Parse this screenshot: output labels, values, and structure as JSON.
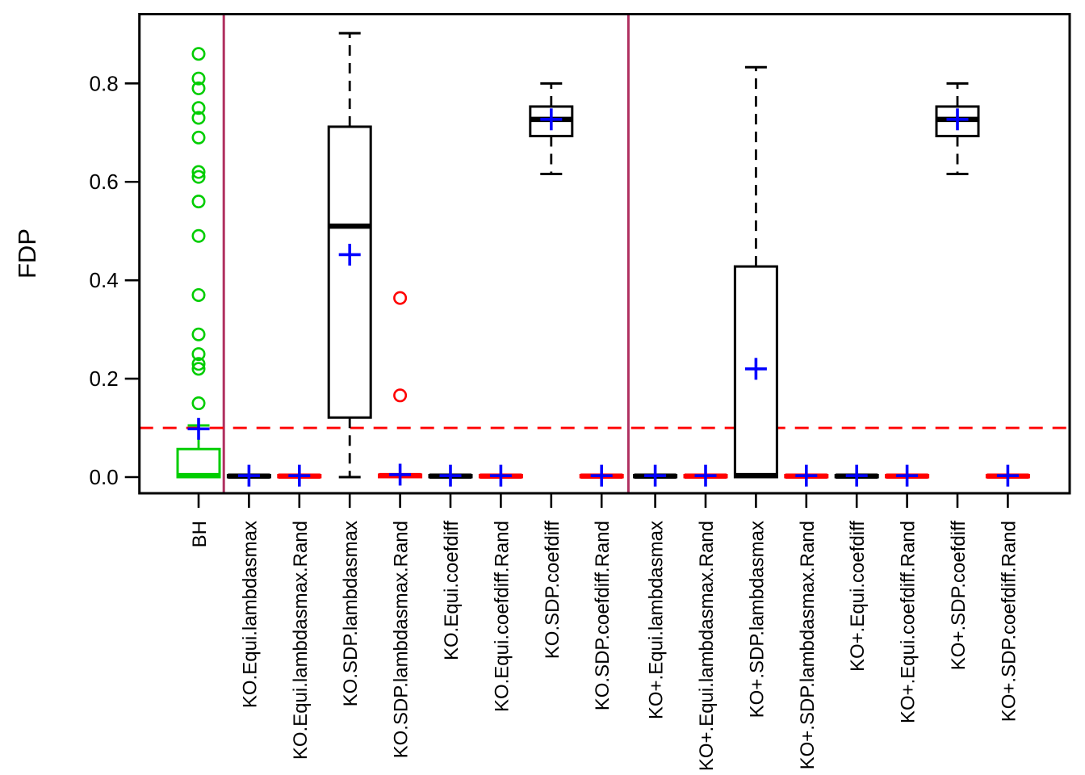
{
  "figure": {
    "ylabel": "FDP"
  },
  "chart_data": {
    "type": "boxplot",
    "title": "",
    "xlabel": "",
    "ylabel": "FDP",
    "ylim": [
      -0.033,
      0.941
    ],
    "grid": false,
    "yticks": [
      {
        "value": 0.0,
        "label": "0.0"
      },
      {
        "value": 0.2,
        "label": "0.2"
      },
      {
        "value": 0.4,
        "label": "0.4"
      },
      {
        "value": 0.6,
        "label": "0.6"
      },
      {
        "value": 0.8,
        "label": "0.8"
      }
    ],
    "categories": [
      "BH",
      "KO.Equi.lambdasmax",
      "KO.Equi.lambdasmax.Rand",
      "KO.SDP.lambdasmax",
      "KO.SDP.lambdasmax.Rand",
      "KO.Equi.coefdiff",
      "KO.Equi.coefdiff.Rand",
      "KO.SDP.coefdiff",
      "KO.SDP.coefdiff.Rand",
      "KO+.Equi.lambdasmax",
      "KO+.Equi.lambdasmax.Rand",
      "KO+.SDP.lambdasmax",
      "KO+.SDP.lambdasmax.Rand",
      "KO+.Equi.coefdiff",
      "KO+.Equi.coefdiff.Rand",
      "KO+.SDP.coefdiff",
      "KO+.SDP.coefdiff.Rand"
    ],
    "threshold_line": {
      "value": 0.1,
      "color": "#FF0000",
      "style": "dashed"
    },
    "separators": {
      "between_indices": [
        [
          0,
          1
        ],
        [
          8,
          9
        ]
      ],
      "color": "#B03060"
    },
    "mean_marker": {
      "symbol": "plus",
      "color": "#0000FF"
    },
    "boxes": [
      {
        "label": "BH",
        "color": "#00CD00",
        "whisker_low": 0.0,
        "q1": 0.0,
        "median": 0.003,
        "q3": 0.057,
        "whisker_high": 0.105,
        "mean": 0.098,
        "outliers": [
          0.86,
          0.81,
          0.79,
          0.75,
          0.73,
          0.69,
          0.62,
          0.61,
          0.56,
          0.49,
          0.37,
          0.29,
          0.25,
          0.23,
          0.22,
          0.15
        ]
      },
      {
        "label": "KO.Equi.lambdasmax",
        "color": "#000000",
        "whisker_low": 0.0,
        "q1": 0.0,
        "median": 0.002,
        "q3": 0.004,
        "whisker_high": 0.004,
        "mean": 0.003,
        "outliers": []
      },
      {
        "label": "KO.Equi.lambdasmax.Rand",
        "color": "#FF0000",
        "whisker_low": 0.0,
        "q1": 0.0,
        "median": 0.002,
        "q3": 0.004,
        "whisker_high": 0.004,
        "mean": 0.003,
        "outliers": []
      },
      {
        "label": "KO.SDP.lambdasmax",
        "color": "#000000",
        "whisker_low": 0.0,
        "q1": 0.121,
        "median": 0.51,
        "q3": 0.712,
        "whisker_high": 0.902,
        "mean": 0.452,
        "outliers": []
      },
      {
        "label": "KO.SDP.lambdasmax.Rand",
        "color": "#FF0000",
        "whisker_low": 0.0,
        "q1": 0.0,
        "median": 0.003,
        "q3": 0.005,
        "whisker_high": 0.005,
        "mean": 0.005,
        "outliers": [
          0.364,
          0.166
        ]
      },
      {
        "label": "KO.Equi.coefdiff",
        "color": "#000000",
        "whisker_low": 0.0,
        "q1": 0.0,
        "median": 0.002,
        "q3": 0.004,
        "whisker_high": 0.004,
        "mean": 0.003,
        "outliers": []
      },
      {
        "label": "KO.Equi.coefdiff.Rand",
        "color": "#FF0000",
        "whisker_low": 0.0,
        "q1": 0.0,
        "median": 0.002,
        "q3": 0.004,
        "whisker_high": 0.004,
        "mean": 0.003,
        "outliers": []
      },
      {
        "label": "KO.SDP.coefdiff",
        "color": "#000000",
        "whisker_low": 0.616,
        "q1": 0.693,
        "median": 0.727,
        "q3": 0.753,
        "whisker_high": 0.8,
        "mean": 0.727,
        "outliers": []
      },
      {
        "label": "KO.SDP.coefdiff.Rand",
        "color": "#FF0000",
        "whisker_low": 0.0,
        "q1": 0.0,
        "median": 0.002,
        "q3": 0.004,
        "whisker_high": 0.004,
        "mean": 0.003,
        "outliers": []
      },
      {
        "label": "KO+.Equi.lambdasmax",
        "color": "#000000",
        "whisker_low": 0.0,
        "q1": 0.0,
        "median": 0.002,
        "q3": 0.004,
        "whisker_high": 0.004,
        "mean": 0.003,
        "outliers": []
      },
      {
        "label": "KO+.Equi.lambdasmax.Rand",
        "color": "#FF0000",
        "whisker_low": 0.0,
        "q1": 0.0,
        "median": 0.002,
        "q3": 0.004,
        "whisker_high": 0.004,
        "mean": 0.003,
        "outliers": []
      },
      {
        "label": "KO+.SDP.lambdasmax",
        "color": "#000000",
        "whisker_low": 0.0,
        "q1": 0.0,
        "median": 0.003,
        "q3": 0.428,
        "whisker_high": 0.833,
        "mean": 0.22,
        "outliers": []
      },
      {
        "label": "KO+.SDP.lambdasmax.Rand",
        "color": "#FF0000",
        "whisker_low": 0.0,
        "q1": 0.0,
        "median": 0.002,
        "q3": 0.004,
        "whisker_high": 0.004,
        "mean": 0.003,
        "outliers": []
      },
      {
        "label": "KO+.Equi.coefdiff",
        "color": "#000000",
        "whisker_low": 0.0,
        "q1": 0.0,
        "median": 0.002,
        "q3": 0.004,
        "whisker_high": 0.004,
        "mean": 0.003,
        "outliers": []
      },
      {
        "label": "KO+.Equi.coefdiff.Rand",
        "color": "#FF0000",
        "whisker_low": 0.0,
        "q1": 0.0,
        "median": 0.002,
        "q3": 0.004,
        "whisker_high": 0.004,
        "mean": 0.003,
        "outliers": []
      },
      {
        "label": "KO+.SDP.coefdiff",
        "color": "#000000",
        "whisker_low": 0.616,
        "q1": 0.693,
        "median": 0.727,
        "q3": 0.753,
        "whisker_high": 0.8,
        "mean": 0.727,
        "outliers": []
      },
      {
        "label": "KO+.SDP.coefdiff.Rand",
        "color": "#FF0000",
        "whisker_low": 0.0,
        "q1": 0.0,
        "median": 0.002,
        "q3": 0.004,
        "whisker_high": 0.004,
        "mean": 0.003,
        "outliers": []
      }
    ]
  }
}
